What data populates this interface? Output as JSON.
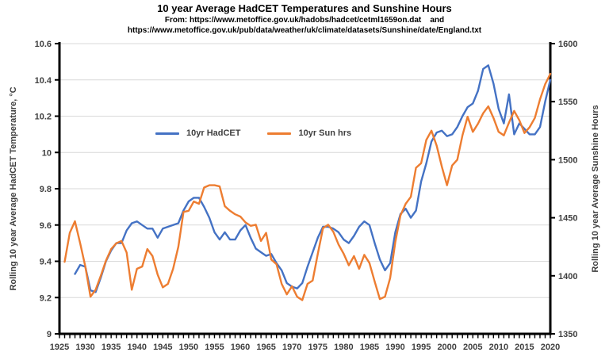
{
  "chart_data": {
    "type": "line",
    "title": "10 year Average HadCET Temperatures and Sunshine Hours",
    "subtitle1": "From: https://www.metoffice.gov.uk/hadobs/hadcet/cetml1659on.dat    and",
    "subtitle2": "https://www.metoffice.gov.uk/pub/data/weather/uk/climate/datasets/Sunshine/date/England.txt",
    "grid": "horizontal",
    "legend_position": "inside-top-center",
    "x_axis": {
      "min": 1925,
      "max": 2020,
      "minor_tick_step": 1,
      "major_ticks": [
        1925,
        1930,
        1935,
        1940,
        1945,
        1950,
        1955,
        1960,
        1965,
        1970,
        1975,
        1980,
        1985,
        1990,
        1995,
        2000,
        2005,
        2010,
        2015,
        2020
      ]
    },
    "y_left_axis": {
      "title": "Rolling 10 year Average HadCET Temperature, °C",
      "min": 9,
      "max": 10.6,
      "ticks": [
        9,
        9.2,
        9.4,
        9.6,
        9.8,
        10,
        10.2,
        10.4,
        10.6
      ],
      "tick_labels": [
        "9",
        "9.2",
        "9.4",
        "9.6",
        "9.8",
        "10",
        "10.2",
        "10.4",
        "10.6"
      ]
    },
    "y_right_axis": {
      "title": "Rolling 10 year Average Sunshine Hours",
      "min": 1350,
      "max": 1600,
      "ticks": [
        1350,
        1400,
        1450,
        1500,
        1550,
        1600
      ],
      "tick_labels": [
        "1350",
        "1400",
        "1450",
        "1500",
        "1550",
        "1600"
      ]
    },
    "colors": {
      "grid": "#d9d9d9",
      "axis": "#000000",
      "tick_text": "#3f3f3f",
      "background": "#ffffff"
    },
    "series": [
      {
        "name": "10yr HadCET",
        "color": "#4472C4",
        "axis": "left",
        "start_year": 1928,
        "values": [
          9.33,
          9.38,
          9.37,
          9.24,
          9.23,
          9.31,
          9.4,
          9.46,
          9.5,
          9.5,
          9.57,
          9.61,
          9.62,
          9.6,
          9.58,
          9.58,
          9.53,
          9.58,
          9.59,
          9.6,
          9.61,
          9.68,
          9.73,
          9.75,
          9.75,
          9.7,
          9.64,
          9.56,
          9.52,
          9.56,
          9.52,
          9.52,
          9.57,
          9.6,
          9.53,
          9.47,
          9.45,
          9.43,
          9.44,
          9.39,
          9.35,
          9.28,
          9.26,
          9.25,
          9.28,
          9.37,
          9.45,
          9.53,
          9.59,
          9.59,
          9.58,
          9.56,
          9.52,
          9.5,
          9.54,
          9.59,
          9.62,
          9.6,
          9.5,
          9.41,
          9.35,
          9.39,
          9.56,
          9.66,
          9.69,
          9.64,
          9.68,
          9.84,
          9.94,
          10.06,
          10.11,
          10.12,
          10.09,
          10.1,
          10.14,
          10.2,
          10.25,
          10.27,
          10.34,
          10.46,
          10.48,
          10.38,
          10.24,
          10.16,
          10.32,
          10.1,
          10.16,
          10.13,
          10.1,
          10.1,
          10.14,
          10.28,
          10.4
        ]
      },
      {
        "name": "10yr Sun hrs",
        "color": "#ED7D31",
        "axis": "right",
        "start_year": 1926,
        "values": [
          1412,
          1437,
          1447,
          1428,
          1408,
          1382,
          1388,
          1400,
          1413,
          1423,
          1428,
          1430,
          1420,
          1388,
          1406,
          1408,
          1423,
          1417,
          1401,
          1390,
          1393,
          1406,
          1425,
          1455,
          1456,
          1464,
          1462,
          1476,
          1478,
          1478,
          1477,
          1460,
          1456,
          1453,
          1451,
          1446,
          1443,
          1444,
          1430,
          1437,
          1414,
          1410,
          1393,
          1384,
          1391,
          1382,
          1379,
          1393,
          1396,
          1419,
          1441,
          1444,
          1438,
          1427,
          1419,
          1409,
          1417,
          1406,
          1418,
          1411,
          1395,
          1380,
          1382,
          1398,
          1429,
          1452,
          1462,
          1468,
          1493,
          1497,
          1517,
          1525,
          1512,
          1494,
          1478,
          1495,
          1500,
          1521,
          1537,
          1524,
          1531,
          1540,
          1546,
          1536,
          1524,
          1521,
          1532,
          1542,
          1534,
          1523,
          1528,
          1536,
          1552,
          1565,
          1574
        ]
      }
    ]
  }
}
